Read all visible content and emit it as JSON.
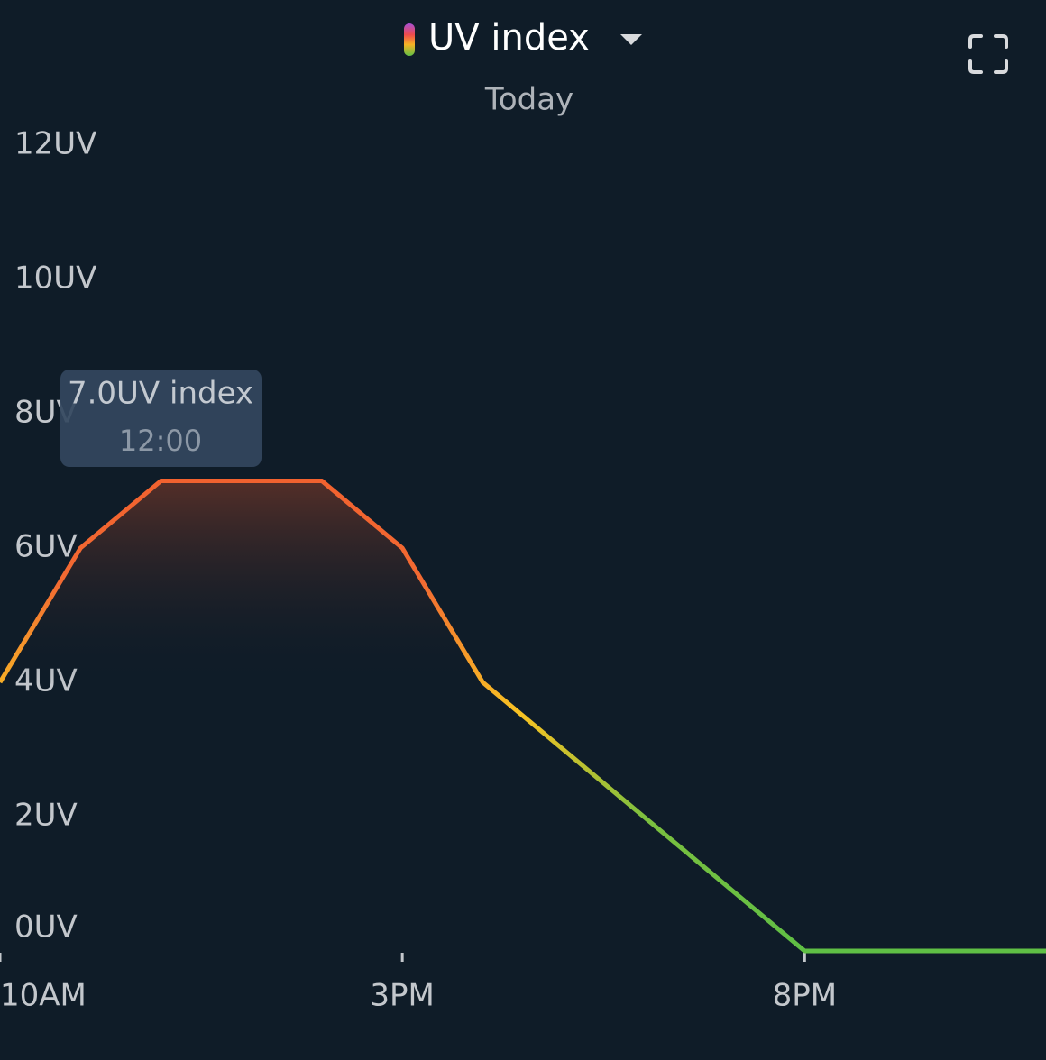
{
  "chart_data": {
    "type": "line",
    "title": "UV index",
    "subtitle": "Today",
    "x": [
      10,
      11,
      12,
      13,
      14,
      15,
      16,
      17,
      18,
      19,
      20,
      21,
      22,
      23
    ],
    "series": [
      {
        "name": "UV index",
        "values": [
          4,
          6,
          7,
          7,
          7,
          6,
          4,
          3,
          2,
          1,
          0,
          0,
          0,
          0
        ]
      }
    ],
    "xlim": [
      10,
      23
    ],
    "xticks": [
      {
        "value": 10,
        "label": "10AM"
      },
      {
        "value": 15,
        "label": "3PM"
      },
      {
        "value": 20,
        "label": "8PM"
      }
    ],
    "ylim": [
      0,
      12
    ],
    "yticks": [
      {
        "value": 0,
        "label": "0UV"
      },
      {
        "value": 2,
        "label": "2UV"
      },
      {
        "value": 4,
        "label": "4UV"
      },
      {
        "value": 6,
        "label": "6UV"
      },
      {
        "value": 8,
        "label": "8UV"
      },
      {
        "value": 10,
        "label": "10UV"
      },
      {
        "value": 12,
        "label": "12UV"
      }
    ],
    "tooltip": {
      "value_label": "7.0UV index",
      "time": "12:00"
    }
  }
}
